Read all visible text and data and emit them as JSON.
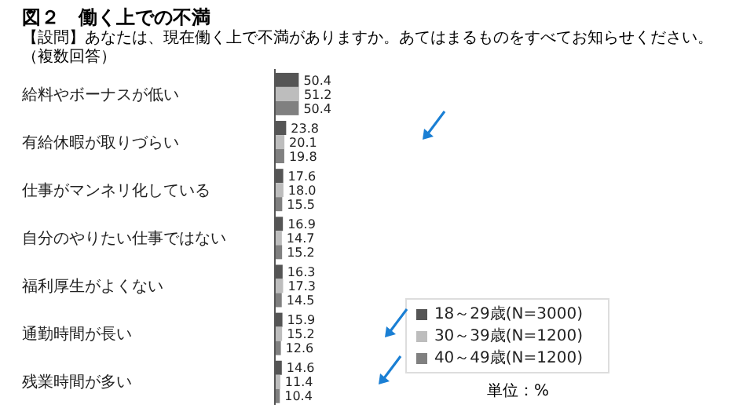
{
  "chart_data": {
    "type": "bar",
    "orientation": "horizontal",
    "title": "図２　働く上での不満",
    "subtitle": "【設問】あなたは、現在働く上で不満がありますか。あてはまるものをすべてお知らせください。（複数回答）",
    "categories": [
      "給料やボーナスが低い",
      "有給休暇が取りづらい",
      "仕事がマンネリ化している",
      "自分のやりたい仕事ではない",
      "福利厚生がよくない",
      "通勤時間が長い",
      "残業時間が多い"
    ],
    "series": [
      {
        "name": "18～29歳(N=3000)",
        "color": "#555555",
        "values": [
          50.4,
          23.8,
          17.6,
          16.9,
          16.3,
          15.9,
          14.6
        ],
        "value_labels": [
          "50.4",
          "23.8",
          "17.6",
          "16.9",
          "16.3",
          "15.9",
          "14.6"
        ]
      },
      {
        "name": "30～39歳(N=1200)",
        "color": "#bdbdbd",
        "values": [
          51.2,
          20.1,
          18.0,
          14.7,
          17.3,
          15.2,
          11.4
        ],
        "value_labels": [
          "51.2",
          "20.1",
          "18.0",
          "14.7",
          "17.3",
          "15.2",
          "11.4"
        ]
      },
      {
        "name": "40～49歳(N=1200)",
        "color": "#808080",
        "values": [
          50.4,
          19.8,
          15.5,
          15.2,
          14.5,
          12.6,
          10.4
        ],
        "value_labels": [
          "50.4",
          "19.8",
          "15.5",
          "15.2",
          "14.5",
          "12.6",
          "10.4"
        ]
      }
    ],
    "legend": "bottom right",
    "grid": false,
    "annotations": [
      "単位：%"
    ]
  }
}
